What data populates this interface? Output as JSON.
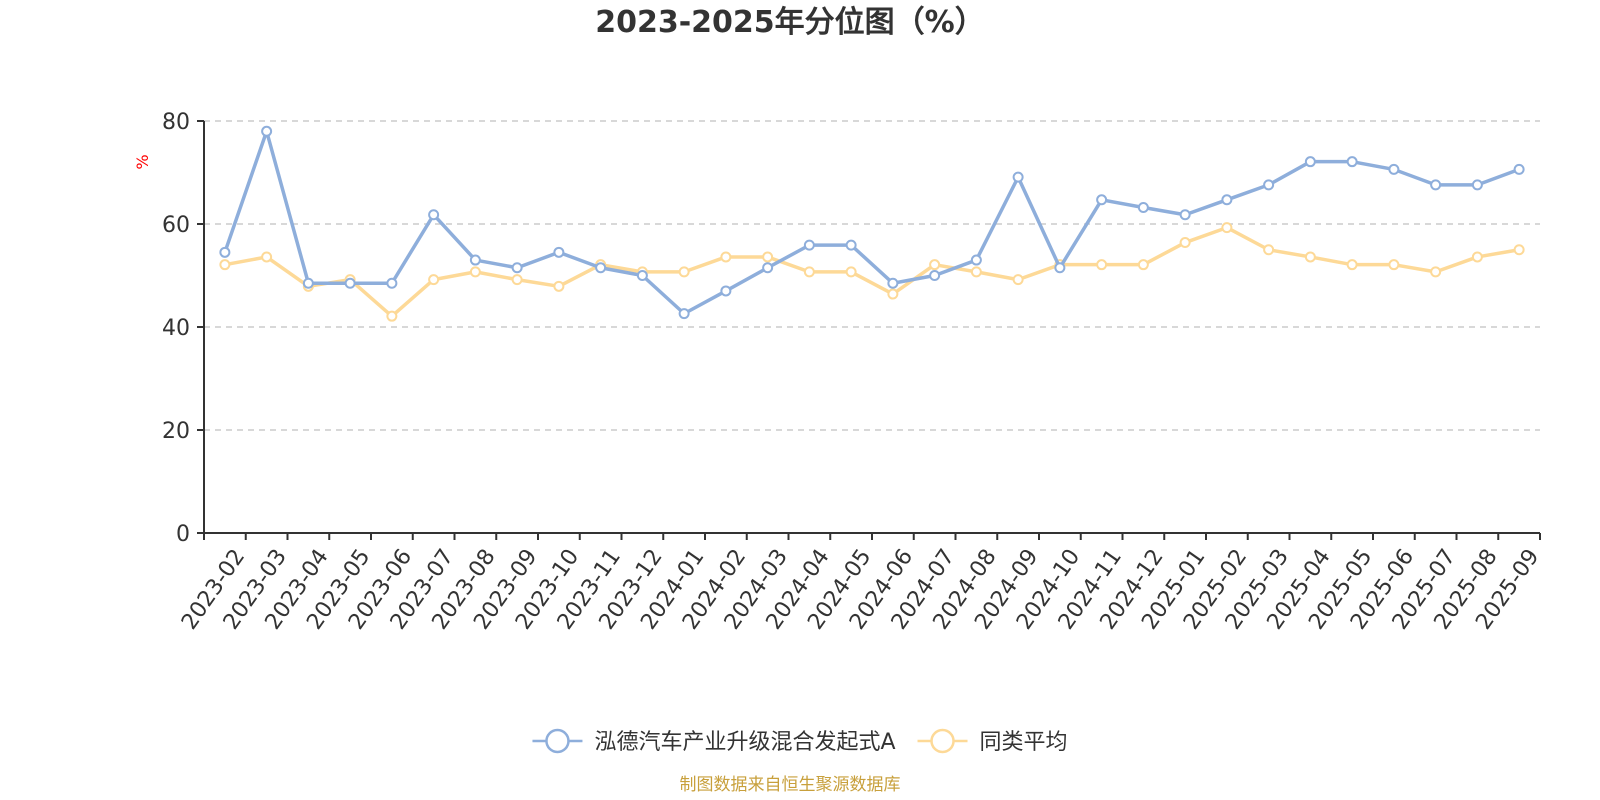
{
  "chart_data": {
    "type": "line",
    "title": "2023-2025年分位图（%）",
    "ylabel": "%",
    "xlabel": "",
    "ylim": [
      0,
      80
    ],
    "yticks": [
      "0",
      "20",
      "40",
      "60",
      "80"
    ],
    "grid": true,
    "legend_position": "bottom",
    "categories": [
      "2023-02",
      "2023-03",
      "2023-04",
      "2023-05",
      "2023-06",
      "2023-07",
      "2023-08",
      "2023-09",
      "2023-10",
      "2023-11",
      "2023-12",
      "2024-01",
      "2024-02",
      "2024-03",
      "2024-04",
      "2024-05",
      "2024-06",
      "2024-07",
      "2024-08",
      "2024-09",
      "2024-10",
      "2024-11",
      "2024-12",
      "2025-01",
      "2025-02",
      "2025-03",
      "2025-04",
      "2025-05",
      "2025-06",
      "2025-07",
      "2025-08",
      "2025-09"
    ],
    "series": [
      {
        "name": "泓德汽车产业升级混合发起式A",
        "color": "#8eaedb",
        "values": [
          54.5,
          78.0,
          48.5,
          48.5,
          48.5,
          61.8,
          53.0,
          51.5,
          54.5,
          51.5,
          50.0,
          42.6,
          47.0,
          51.5,
          55.9,
          55.9,
          48.5,
          50.0,
          53.0,
          69.1,
          51.5,
          64.7,
          63.2,
          61.8,
          64.7,
          67.6,
          72.1,
          72.1,
          70.6,
          67.6,
          67.6,
          70.6
        ]
      },
      {
        "name": "同类平均",
        "color": "#fdd997",
        "values": [
          52.1,
          53.6,
          47.9,
          49.2,
          42.1,
          49.2,
          50.7,
          49.2,
          47.9,
          52.1,
          50.7,
          50.7,
          53.6,
          53.6,
          50.7,
          50.7,
          46.4,
          52.1,
          50.7,
          49.2,
          52.1,
          52.1,
          52.1,
          56.4,
          59.3,
          55.0,
          53.6,
          52.1,
          52.1,
          50.7,
          53.6,
          55.0
        ]
      }
    ]
  },
  "source_text": "制图数据来自恒生聚源数据库"
}
